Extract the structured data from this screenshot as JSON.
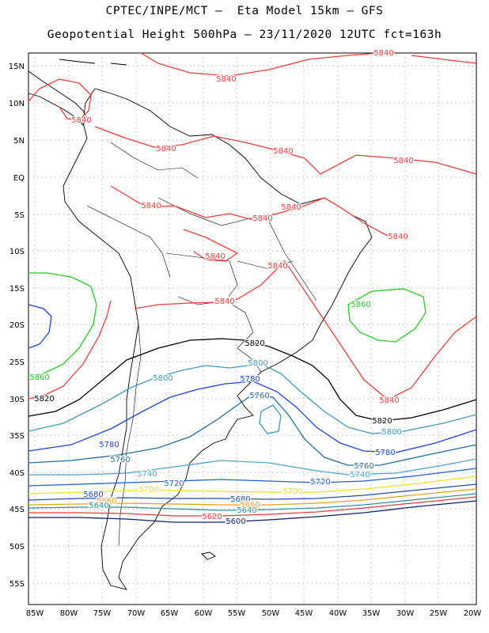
{
  "header": {
    "line1": "CPTEC/INPE/MCT –  Eta Model 15km – GFS",
    "line2": "Geopotential Height 500hPa – 23/11/2020 12UTC fct=163h"
  },
  "axes": {
    "lat_labels": [
      "15N",
      "10N",
      "5N",
      "EQ",
      "5S",
      "10S",
      "15S",
      "20S",
      "25S",
      "30S",
      "35S",
      "40S",
      "45S",
      "50S",
      "55S"
    ],
    "lon_labels": [
      "85W",
      "80W",
      "75W",
      "70W",
      "65W",
      "60W",
      "55W",
      "50W",
      "45W",
      "40W",
      "35W",
      "30W",
      "25W",
      "20W"
    ]
  },
  "colors": {
    "5880": "#1f2f8f",
    "5860": "#22cc22",
    "5840": "#ee3b3b",
    "5820": "#000000",
    "5800": "#3a9bb8",
    "5780": "#1f3fdd",
    "5760": "#1f6f9f",
    "5740": "#4aa7c8",
    "5720": "#1f5fcf",
    "5700": "#f0e020",
    "5680": "#1f4faf",
    "5660": "#e8a020",
    "5640": "#2f8f9f",
    "5620": "#ee3b3b",
    "5600": "#0f1f6f"
  },
  "contour_labels": [
    {
      "text": "5840",
      "color_key": "5840"
    },
    {
      "text": "5840",
      "color_key": "5840"
    },
    {
      "text": "5840",
      "color_key": "5840"
    },
    {
      "text": "5840",
      "color_key": "5840"
    },
    {
      "text": "5840",
      "color_key": "5840"
    },
    {
      "text": "5840",
      "color_key": "5840"
    },
    {
      "text": "5840",
      "color_key": "5840"
    },
    {
      "text": "5840",
      "color_key": "5840"
    },
    {
      "text": "5840",
      "color_key": "5840"
    },
    {
      "text": "5840",
      "color_key": "5840"
    },
    {
      "text": "5840",
      "color_key": "5840"
    },
    {
      "text": "5840",
      "color_key": "5840"
    },
    {
      "text": "5840",
      "color_key": "5840"
    },
    {
      "text": "5860",
      "color_key": "5860"
    },
    {
      "text": "5860",
      "color_key": "5860"
    },
    {
      "text": "5840",
      "color_key": "5840"
    },
    {
      "text": "5820",
      "color_key": "5820"
    },
    {
      "text": "5820",
      "color_key": "5820"
    },
    {
      "text": "5820",
      "color_key": "5820"
    },
    {
      "text": "5800",
      "color_key": "5800"
    },
    {
      "text": "5800",
      "color_key": "5800"
    },
    {
      "text": "5800",
      "color_key": "5800"
    },
    {
      "text": "5780",
      "color_key": "5780"
    },
    {
      "text": "5780",
      "color_key": "5780"
    },
    {
      "text": "5780",
      "color_key": "5780"
    },
    {
      "text": "5760",
      "color_key": "5760"
    },
    {
      "text": "5760",
      "color_key": "5760"
    },
    {
      "text": "5760",
      "color_key": "5760"
    },
    {
      "text": "5740",
      "color_key": "5740"
    },
    {
      "text": "5740",
      "color_key": "5740"
    },
    {
      "text": "5720",
      "color_key": "5720"
    },
    {
      "text": "5720",
      "color_key": "5720"
    },
    {
      "text": "5700",
      "color_key": "5700"
    },
    {
      "text": "5700",
      "color_key": "5700"
    },
    {
      "text": "5680",
      "color_key": "5680"
    },
    {
      "text": "5680",
      "color_key": "5680"
    },
    {
      "text": "5660",
      "color_key": "5660"
    },
    {
      "text": "5660",
      "color_key": "5660"
    },
    {
      "text": "5640",
      "color_key": "5640"
    },
    {
      "text": "5640",
      "color_key": "5640"
    },
    {
      "text": "5620",
      "color_key": "5620"
    },
    {
      "text": "5600",
      "color_key": "5600"
    }
  ]
}
